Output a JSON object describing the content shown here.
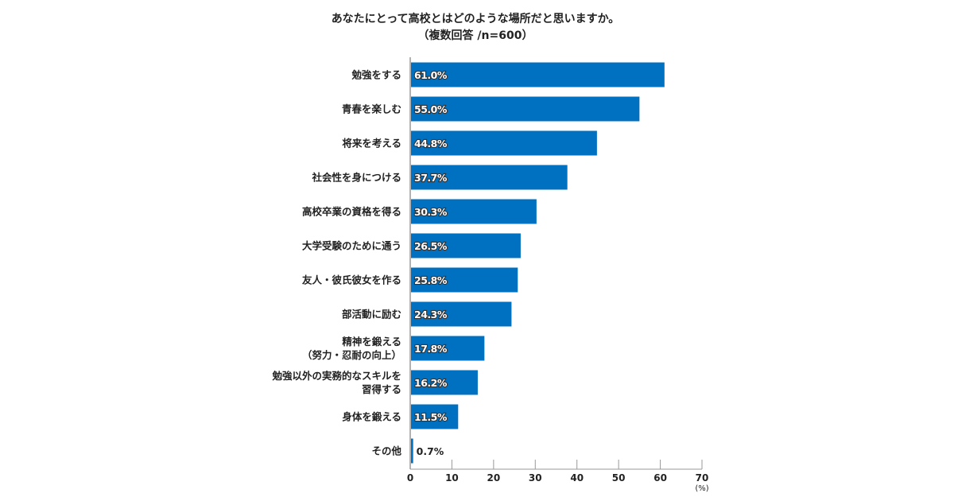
{
  "chart_data": {
    "type": "bar",
    "orientation": "horizontal",
    "title": [
      "あなたにとって高校とはどのような場所だと思いますか。",
      "（複数回答 /n=600）"
    ],
    "categories": [
      [
        "勉強をする"
      ],
      [
        "青春を楽しむ"
      ],
      [
        "将来を考える"
      ],
      [
        "社会性を身につける"
      ],
      [
        "高校卒業の資格を得る"
      ],
      [
        "大学受験のために通う"
      ],
      [
        "友人・彼氏彼女を作る"
      ],
      [
        "部活動に励む"
      ],
      [
        "精神を鍛える",
        "（努力・忍耐の向上）"
      ],
      [
        "勉強以外の実務的なスキルを",
        "習得する"
      ],
      [
        "身体を鍛える"
      ],
      [
        "その他"
      ]
    ],
    "values": [
      61.0,
      55.0,
      44.8,
      37.7,
      30.3,
      26.5,
      25.8,
      24.3,
      17.8,
      16.2,
      11.5,
      0.7
    ],
    "data_labels": [
      "61.0%",
      "55.0%",
      "44.8%",
      "37.7%",
      "30.3%",
      "26.5%",
      "25.8%",
      "24.3%",
      "17.8%",
      "16.2%",
      "11.5%",
      "0.7%"
    ],
    "xlim": [
      0,
      70
    ],
    "xticks": [
      0,
      10,
      20,
      30,
      40,
      50,
      60,
      70
    ],
    "xunit": "(%)",
    "grid": false,
    "bar_color": "#0070c0"
  }
}
